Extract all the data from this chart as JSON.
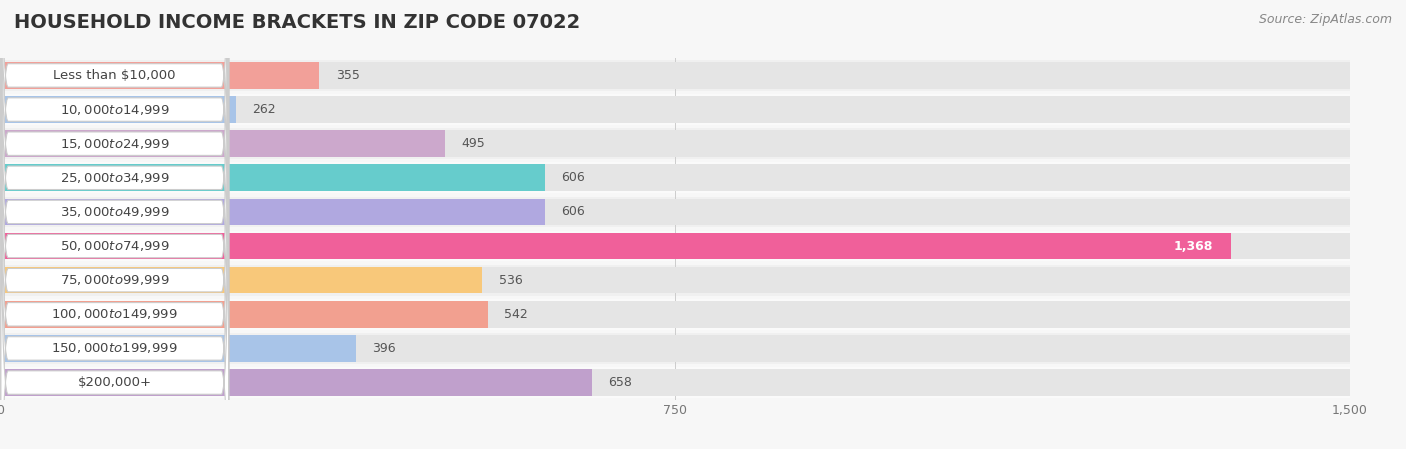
{
  "title": "HOUSEHOLD INCOME BRACKETS IN ZIP CODE 07022",
  "source": "Source: ZipAtlas.com",
  "categories": [
    "Less than $10,000",
    "$10,000 to $14,999",
    "$15,000 to $24,999",
    "$25,000 to $34,999",
    "$35,000 to $49,999",
    "$50,000 to $74,999",
    "$75,000 to $99,999",
    "$100,000 to $149,999",
    "$150,000 to $199,999",
    "$200,000+"
  ],
  "values": [
    355,
    262,
    495,
    606,
    606,
    1368,
    536,
    542,
    396,
    658
  ],
  "bar_colors": [
    "#f2a099",
    "#a8c4e8",
    "#cca8cc",
    "#66cccc",
    "#b0a8e0",
    "#f0609a",
    "#f8c87a",
    "#f2a090",
    "#a8c4e8",
    "#c0a0cc"
  ],
  "bg_color": "#f7f7f7",
  "bar_bg_color": "#e5e5e5",
  "row_bg_even": "#f0f0f0",
  "row_bg_odd": "#fafafa",
  "xlim": [
    0,
    1500
  ],
  "xticks": [
    0,
    750,
    1500
  ],
  "title_fontsize": 14,
  "label_fontsize": 9.5,
  "value_fontsize": 9,
  "source_fontsize": 9
}
